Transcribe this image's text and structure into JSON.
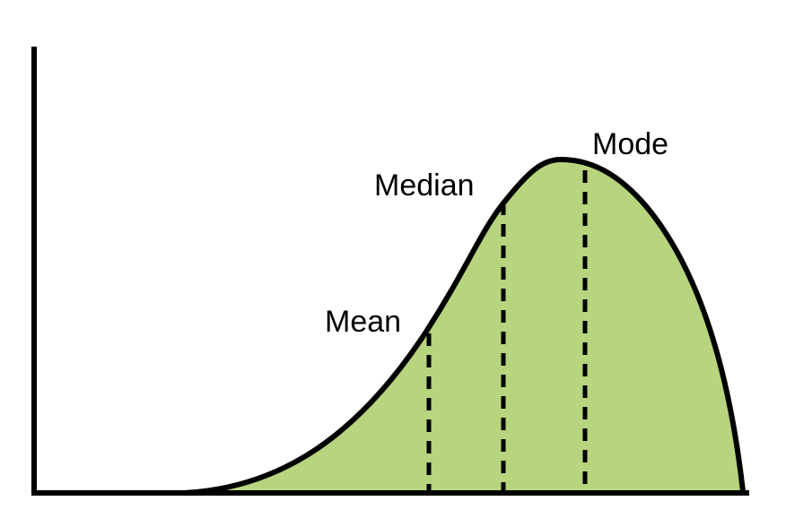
{
  "labels": {
    "mean": "Mean",
    "median": "Median",
    "mode": "Mode"
  },
  "colors": {
    "fill": "#b6d57e",
    "stroke": "#000000",
    "background": "#ffffff"
  }
}
